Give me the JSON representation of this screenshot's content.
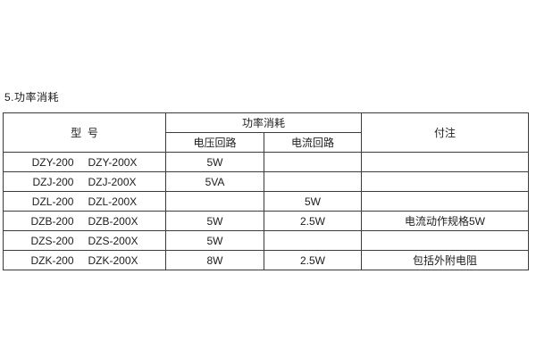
{
  "page": {
    "heading": "5.功率消耗"
  },
  "table": {
    "header": {
      "model": "型  号",
      "power_group": "功率消耗",
      "voltage": "电压回路",
      "current": "电流回路",
      "notes": "付注"
    },
    "rows": [
      {
        "model_a": "DZY-200",
        "model_b": "DZY-200X",
        "voltage": "5W",
        "current": "",
        "notes": ""
      },
      {
        "model_a": "DZJ-200",
        "model_b": "DZJ-200X",
        "voltage": "5VA",
        "current": "",
        "notes": ""
      },
      {
        "model_a": "DZL-200",
        "model_b": "DZL-200X",
        "voltage": "",
        "current": "5W",
        "notes": ""
      },
      {
        "model_a": "DZB-200",
        "model_b": "DZB-200X",
        "voltage": "5W",
        "current": "2.5W",
        "notes": "电流动作规格5W"
      },
      {
        "model_a": "DZS-200",
        "model_b": "DZS-200X",
        "voltage": "5W",
        "current": "",
        "notes": ""
      },
      {
        "model_a": "DZK-200",
        "model_b": "DZK-200X",
        "voltage": "8W",
        "current": "2.5W",
        "notes": "包括外附电阻"
      }
    ],
    "colors": {
      "border": "#3c3c3c",
      "text": "#1c1c1c",
      "background": "#ffffff"
    }
  }
}
